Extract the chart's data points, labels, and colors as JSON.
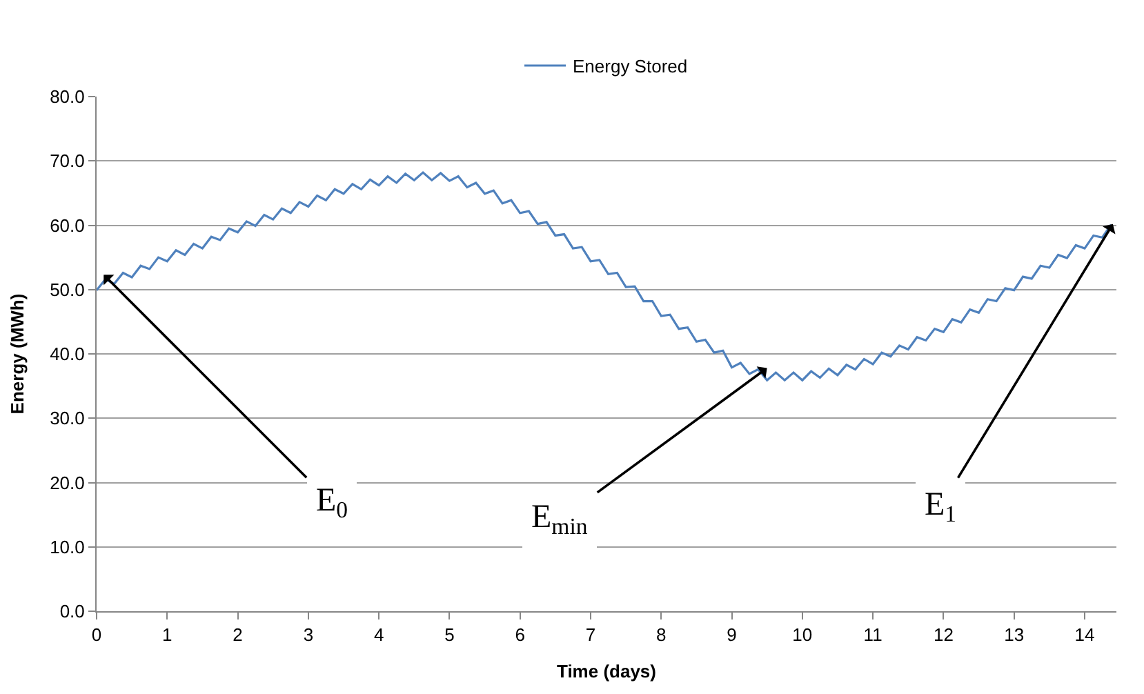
{
  "chart_data": {
    "type": "line",
    "xlabel": "Time (days)",
    "ylabel": "Energy (MWh)",
    "x": [
      0,
      0.125,
      0.25,
      0.375,
      0.5,
      0.625,
      0.75,
      0.875,
      1,
      1.125,
      1.25,
      1.375,
      1.5,
      1.625,
      1.75,
      1.875,
      2,
      2.125,
      2.25,
      2.375,
      2.5,
      2.625,
      2.75,
      2.875,
      3,
      3.125,
      3.25,
      3.375,
      3.5,
      3.625,
      3.75,
      3.875,
      4,
      4.125,
      4.25,
      4.375,
      4.5,
      4.625,
      4.75,
      4.875,
      5,
      5.125,
      5.25,
      5.375,
      5.5,
      5.625,
      5.75,
      5.875,
      6,
      6.125,
      6.25,
      6.375,
      6.5,
      6.625,
      6.75,
      6.875,
      7,
      7.125,
      7.25,
      7.375,
      7.5,
      7.625,
      7.75,
      7.875,
      8,
      8.125,
      8.25,
      8.375,
      8.5,
      8.625,
      8.75,
      8.875,
      9,
      9.125,
      9.25,
      9.375,
      9.5,
      9.625,
      9.75,
      9.875,
      10,
      10.125,
      10.25,
      10.375,
      10.5,
      10.625,
      10.75,
      10.875,
      11,
      11.125,
      11.25,
      11.375,
      11.5,
      11.625,
      11.75,
      11.875,
      12,
      12.125,
      12.25,
      12.375,
      12.5,
      12.625,
      12.75,
      12.875,
      13,
      13.125,
      13.25,
      13.375,
      13.5,
      13.625,
      13.75,
      13.875,
      14,
      14.125,
      14.25,
      14.375
    ],
    "series": [
      {
        "name": "Energy Stored",
        "color": "#4f81bd",
        "values": [
          49.9,
          51.6,
          50.9,
          52.6,
          51.9,
          53.7,
          53.2,
          55.0,
          54.4,
          56.1,
          55.4,
          57.1,
          56.4,
          58.2,
          57.7,
          59.5,
          58.9,
          60.6,
          59.9,
          61.6,
          60.9,
          62.6,
          61.9,
          63.6,
          62.9,
          64.6,
          63.9,
          65.6,
          64.9,
          66.4,
          65.6,
          67.1,
          66.2,
          67.6,
          66.6,
          68.0,
          67.0,
          68.2,
          67.0,
          68.1,
          66.9,
          67.6,
          65.9,
          66.6,
          64.9,
          65.4,
          63.4,
          63.9,
          61.9,
          62.2,
          60.2,
          60.5,
          58.4,
          58.6,
          56.4,
          56.6,
          54.4,
          54.6,
          52.4,
          52.6,
          50.4,
          50.5,
          48.2,
          48.2,
          45.9,
          46.1,
          43.9,
          44.1,
          41.9,
          42.2,
          40.2,
          40.5,
          37.9,
          38.6,
          36.9,
          37.6,
          35.9,
          37.1,
          35.9,
          37.1,
          35.9,
          37.3,
          36.3,
          37.7,
          36.7,
          38.3,
          37.6,
          39.2,
          38.4,
          40.2,
          39.6,
          41.3,
          40.7,
          42.6,
          42.1,
          43.9,
          43.4,
          45.4,
          44.9,
          46.9,
          46.4,
          48.5,
          48.2,
          50.2,
          49.9,
          52.0,
          51.7,
          53.7,
          53.4,
          55.4,
          54.9,
          56.9,
          56.4,
          58.4,
          58.1,
          60.1
        ]
      }
    ],
    "xlim": [
      0,
      14.45
    ],
    "xticks": [
      0,
      1,
      2,
      3,
      4,
      5,
      6,
      7,
      8,
      9,
      10,
      11,
      12,
      13,
      14
    ],
    "ylim": [
      0,
      80
    ],
    "yticks": [
      {
        "value": 0,
        "label": "0.0"
      },
      {
        "value": 10,
        "label": "10.0"
      },
      {
        "value": 20,
        "label": "20.0"
      },
      {
        "value": 30,
        "label": "30.0"
      },
      {
        "value": 40,
        "label": "40.0"
      },
      {
        "value": 50,
        "label": "50.0"
      },
      {
        "value": 60,
        "label": "60.0"
      },
      {
        "value": 70,
        "label": "70.0"
      },
      {
        "value": 80,
        "label": "80.0"
      }
    ],
    "grid": "y",
    "legend": "top",
    "marker": "none",
    "line_style": "solid",
    "annotations": [
      {
        "text": "E$_{0}$",
        "x": 0.1,
        "y": 52.3
      },
      {
        "text": "E$_{min}$",
        "x": 9.5,
        "y": 37.8
      },
      {
        "text": "E$_{1}$",
        "x": 14.4,
        "y": 60.2
      }
    ]
  }
}
